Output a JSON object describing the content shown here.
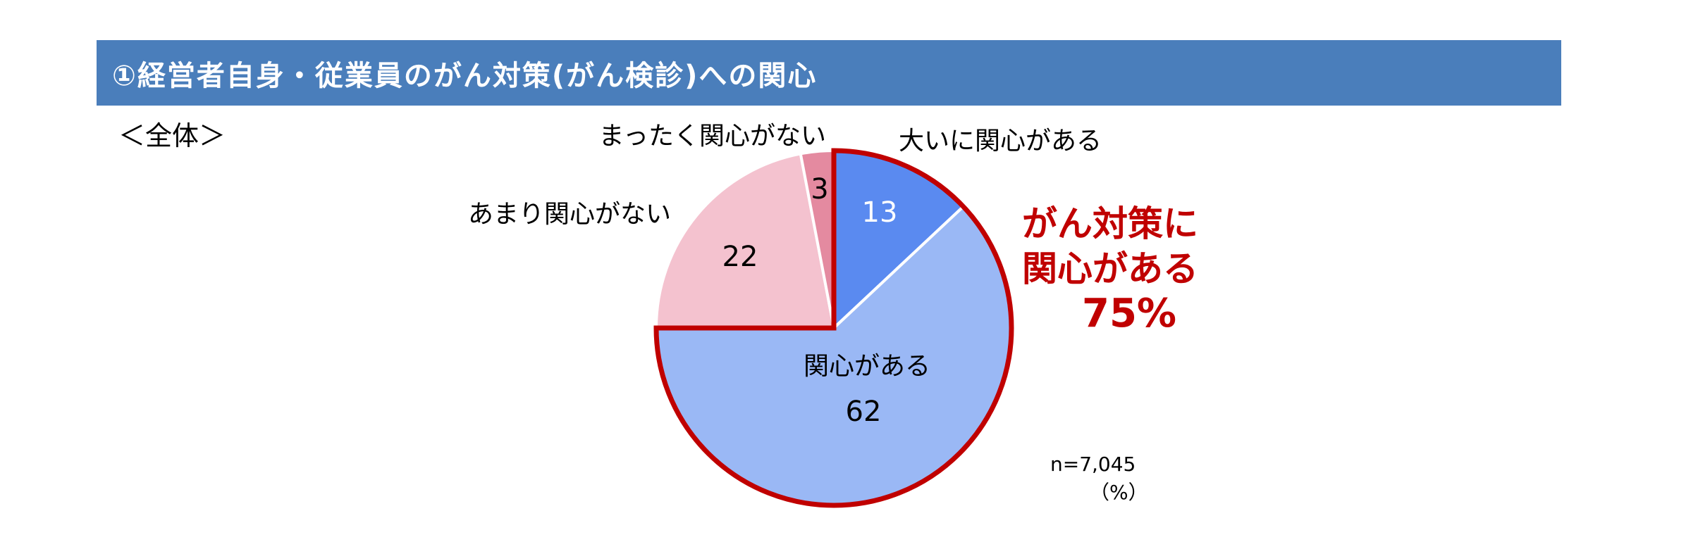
{
  "header": {
    "title": "①経営者自身・従業員のがん対策(がん検診)への関心"
  },
  "scope_label": "＜全体＞",
  "callout": {
    "line1": "がん対策に",
    "line2": "関心がある",
    "value": "75%"
  },
  "sample_size": "n=7,045",
  "unit": "（%）",
  "colors": {
    "header_bar": "#4a7ebb",
    "accent_red": "#c00000"
  },
  "chart_data": {
    "type": "pie",
    "title": "",
    "start": "12 o'clock, clockwise",
    "slices": [
      {
        "label": "大いに関心がある",
        "value": 13,
        "color": "#5a8af0"
      },
      {
        "label": "関心がある",
        "value": 62,
        "color": "#9ab8f5"
      },
      {
        "label": "あまり関心がない",
        "value": 22,
        "color": "#f4c2cf"
      },
      {
        "label": "まったく関心がない",
        "value": 3,
        "color": "#e48aa0"
      }
    ],
    "highlight": {
      "slices": [
        "大いに関心がある",
        "関心がある"
      ],
      "outline_color": "#c00000",
      "total": 75
    }
  }
}
